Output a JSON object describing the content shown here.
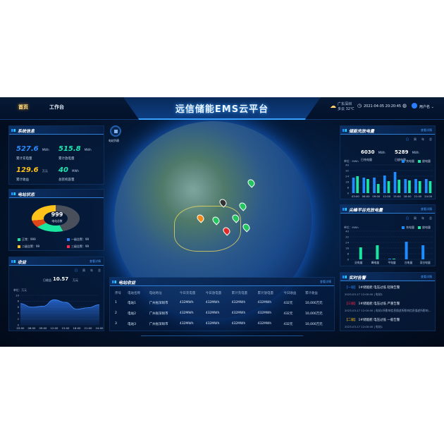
{
  "header": {
    "title": "远信储能EMS云平台",
    "tabs": [
      {
        "label": "首页"
      },
      {
        "label": "工作台"
      }
    ],
    "weather": {
      "location": "广东深圳",
      "condition": "多云 32℃",
      "icon": "partly-cloudy-icon"
    },
    "datetime": "2021-04-05 20:20:45",
    "user": "用户名"
  },
  "station_list_button": "电站列表",
  "system_info": {
    "title": "系统信息",
    "stats": [
      {
        "value": "527.6",
        "unit": "MWh",
        "label": "累计充电量",
        "color": "#2b8cff"
      },
      {
        "value": "515.8",
        "unit": "MWh",
        "label": "累计放电量",
        "color": "#1be6b0"
      },
      {
        "value": "129.6",
        "unit": "万元",
        "label": "累计收益",
        "color": "#ffc21a"
      },
      {
        "value": "40",
        "unit": "MWh",
        "label": "总装机容量",
        "color": "#1be6b0"
      }
    ]
  },
  "station_status": {
    "title": "电站状态",
    "total": "999",
    "total_label": "电站总数",
    "legend": [
      {
        "label": "正常：999",
        "color": "#1be6a0"
      },
      {
        "label": "一级告警：99",
        "color": "#2b7fff"
      },
      {
        "label": "二级告警：99",
        "color": "#ffc21a"
      },
      {
        "label": "三级告警：99",
        "color": "#ff2a4a"
      }
    ]
  },
  "revenue": {
    "title": "收益",
    "more": "查看详情",
    "periods": [
      "日",
      "周",
      "年",
      "总"
    ],
    "total_label": "日收益",
    "total_value": "10.57",
    "total_unit": "万元",
    "unit_label": "单位：万元"
  },
  "storage": {
    "title": "储能充放电量",
    "more": "查看详情",
    "periods": [
      "日",
      "周",
      "年",
      "总"
    ],
    "charge": {
      "value": "6030",
      "unit": "MWh",
      "label": "日充电量"
    },
    "discharge": {
      "value": "5289",
      "unit": "MWh",
      "label": "日放电量"
    },
    "unit_label": "单位：MWh"
  },
  "peak": {
    "title": "尖峰平谷充放电量",
    "more": "查看详情",
    "periods": [
      "日",
      "周",
      "年",
      "总"
    ],
    "unit_label": "单位：MWh"
  },
  "alarms": {
    "title": "实时告警",
    "more": "查看详情",
    "items": [
      {
        "level": "【一级】",
        "level_color": "#2b8cff",
        "text": "1#储能舱 电压过低 轻微告警",
        "meta": "2023-03-17 12:00:00 | 电站1"
      },
      {
        "level": "【三级】",
        "level_color": "#ff2a4a",
        "text": "1#储能舱 电压过低 严重告警",
        "meta": "2023-03-17 12:00:00 | 电站1所影响信息描述所影响信息描述所影响信息描述所影响信息描述..."
      },
      {
        "level": "【二级】",
        "level_color": "#ffc21a",
        "text": "1#储能舱 电压过低 一般告警",
        "meta": "2023-03-17 12:00:00 | 电站1"
      }
    ]
  },
  "station_revenue": {
    "title": "电站收益",
    "more": "查看详情",
    "columns": [
      "序号",
      "电站名称",
      "电站地址",
      "今日充电量",
      "今日放电量",
      "累计充电量",
      "累计放电量",
      "今日收益",
      "累计收益"
    ],
    "rows": [
      [
        "1",
        "电站1",
        "广州省深圳市",
        "432MWh",
        "432MWh",
        "432MWh",
        "432MWh",
        "432元",
        "10,000万元"
      ],
      [
        "2",
        "电站2",
        "广州省深圳市",
        "432MWh",
        "432MWh",
        "432MWh",
        "432MWh",
        "432元",
        "10,000万元"
      ],
      [
        "3",
        "电站3",
        "广州省深圳市",
        "432MWh",
        "432MWh",
        "432MWh",
        "432MWh",
        "432元",
        "10,000万元"
      ]
    ]
  },
  "chart_data": [
    {
      "type": "area",
      "categories": [
        "03:00",
        "06:00",
        "09:00",
        "12:00",
        "15:00",
        "18:00",
        "21:00",
        "24:00"
      ],
      "values": [
        7.2,
        6.0,
        6.3,
        8.5,
        7.6,
        5.3,
        5.8,
        6.8
      ],
      "ylabel": "单位：万元",
      "ylim": [
        0,
        10
      ],
      "yticks": [
        0,
        2,
        4,
        6,
        8,
        10
      ],
      "grid": true,
      "color": "#2b6fe0"
    },
    {
      "type": "bar",
      "categories": [
        "03:00",
        "06:00",
        "09:00",
        "12:00",
        "15:00",
        "18:00",
        "21:00",
        "24:00"
      ],
      "series": [
        {
          "name": "充电量",
          "color": "#1e8cff",
          "values": [
            22,
            22,
            22,
            25,
            30,
            20,
            20,
            20
          ]
        },
        {
          "name": "放电量",
          "color": "#1be6a0",
          "values": [
            24,
            20,
            13,
            17,
            19,
            18,
            17,
            17
          ]
        }
      ],
      "ylabel": "单位：MWh",
      "ylim": [
        0,
        40
      ],
      "yticks": [
        0,
        8,
        16,
        24,
        32,
        40
      ],
      "legend": "top-right",
      "grid": true
    },
    {
      "type": "bar",
      "categories": [
        "尖电量",
        "峰电量",
        "平电量",
        "谷电量",
        "深谷电量"
      ],
      "series": [
        {
          "name": "充电量",
          "color": "#1e8cff",
          "values": [
            0,
            0,
            1,
            25,
            20
          ]
        },
        {
          "name": "放电量",
          "color": "#1be6a0",
          "values": [
            17,
            20,
            1,
            0,
            0
          ]
        }
      ],
      "ylabel": "单位：MWh",
      "ylim": [
        0,
        40
      ],
      "yticks": [
        0,
        8,
        16,
        24,
        32,
        40
      ],
      "legend": "top-right",
      "grid": true
    },
    {
      "type": "pie",
      "values": [
        999,
        99,
        99,
        99
      ],
      "labels": [
        "正常",
        "一级告警",
        "二级告警",
        "三级告警"
      ]
    }
  ]
}
